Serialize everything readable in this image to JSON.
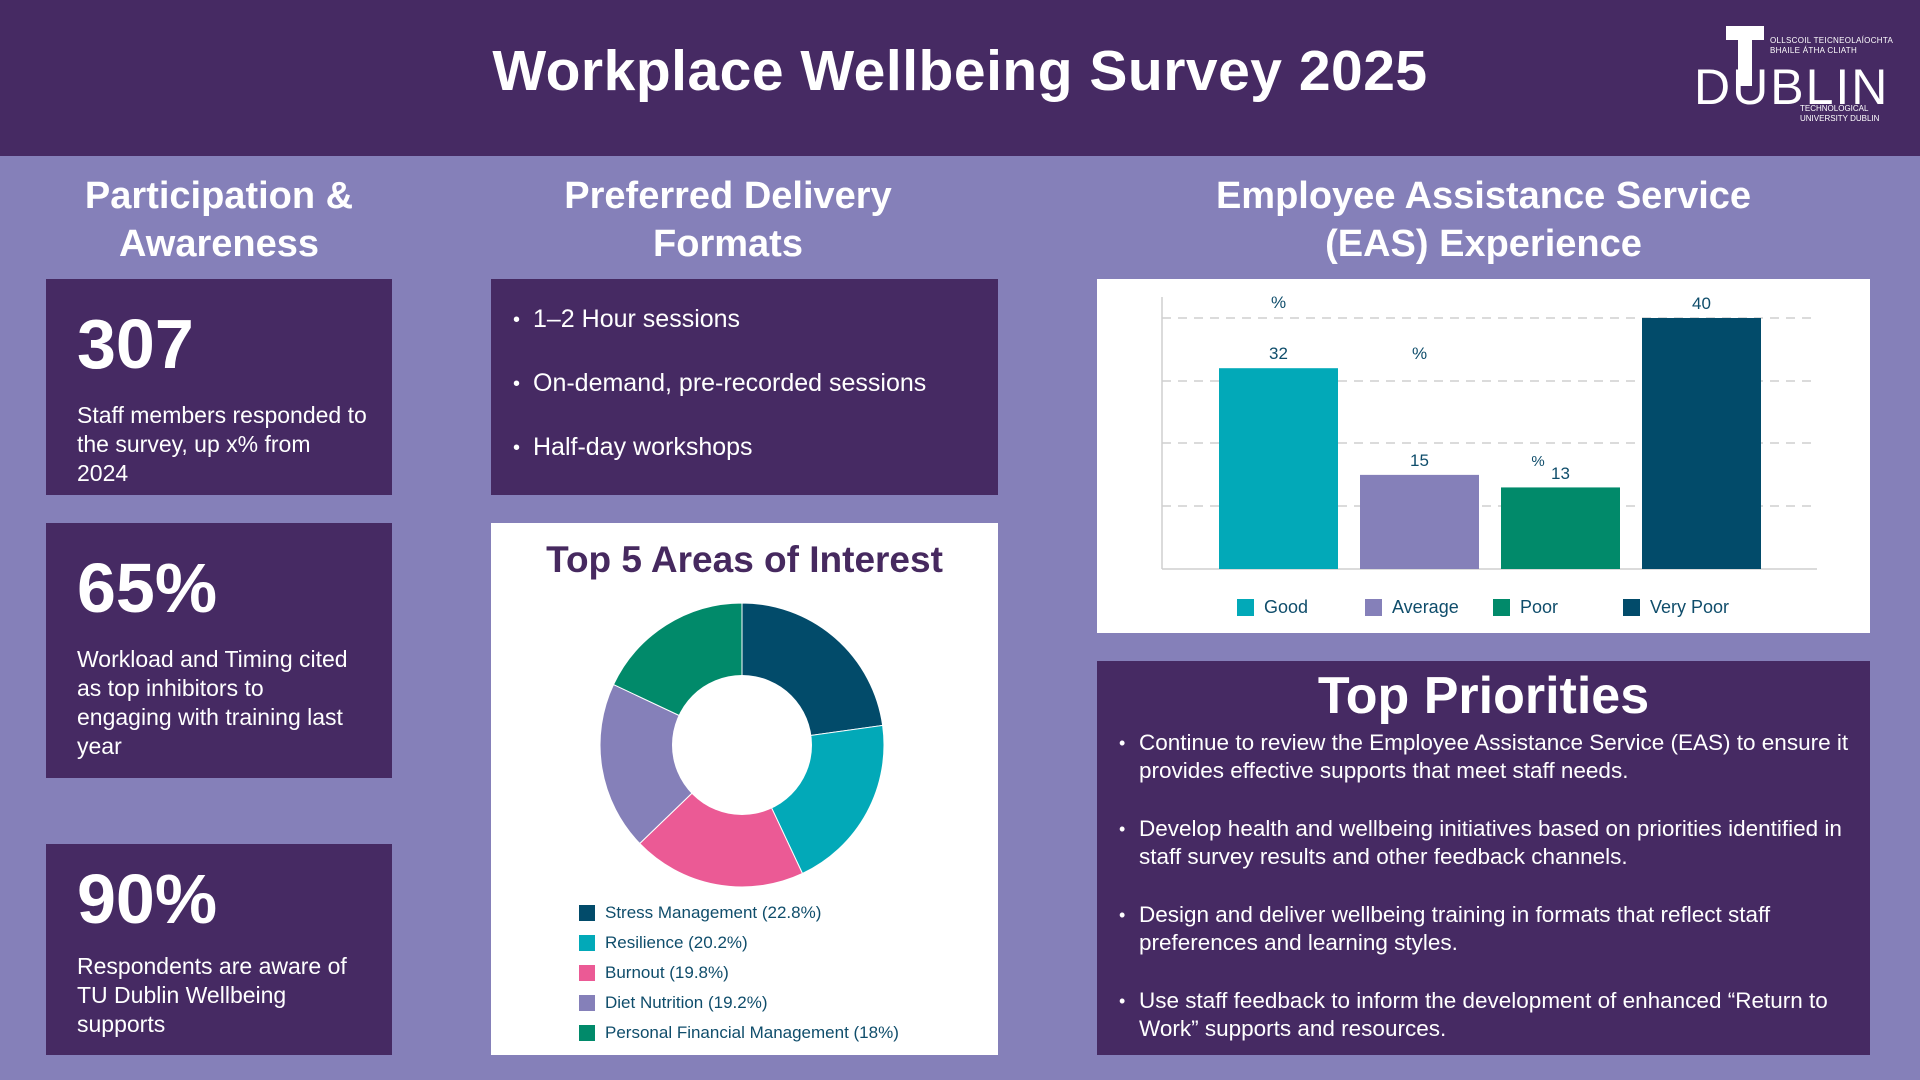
{
  "header": {
    "title": "Workplace Wellbeing Survey 2025",
    "logo": {
      "irish_line1": "OLLSCOIL TEICNEOLAÍOCHTA",
      "irish_line2": "BHAILE ÁTHA CLIATH",
      "wordmark": "DUBLIN",
      "english_line1": "TECHNOLOGICAL",
      "english_line2": "UNIVERSITY DUBLIN"
    }
  },
  "participation": {
    "title_line1": "Participation &",
    "title_line2": "Awareness",
    "stats": [
      {
        "value": "307",
        "description": "Staff members responded to the survey, up x% from 2024"
      },
      {
        "value": "65%",
        "description": "Workload and Timing cited as top inhibitors to engaging with training last year"
      },
      {
        "value": "90%",
        "description": "Respondents are aware of TU Dublin Wellbeing supports"
      }
    ]
  },
  "delivery": {
    "title_line1": "Preferred Delivery",
    "title_line2": "Formats",
    "items": [
      "1–2 Hour sessions",
      "On-demand, pre-recorded sessions",
      "Half-day workshops"
    ]
  },
  "interests": {
    "title": "Top 5 Areas of Interest",
    "legend": [
      "Stress Management (22.8%)",
      "Resilience (20.2%)",
      "Burnout (19.8%)",
      "Diet Nutrition (19.2%)",
      "Personal Financial Management (18%)"
    ]
  },
  "eas": {
    "title_line1": "Employee Assistance Service",
    "title_line2": "(EAS) Experience",
    "bar_labels": [
      "32",
      "15",
      "13",
      "40"
    ],
    "percent_marks": [
      "%",
      "%",
      "%"
    ],
    "legend": [
      "Good",
      "Average",
      "Poor",
      "Very Poor"
    ]
  },
  "priorities": {
    "title": "Top Priorities",
    "items": [
      "Continue to review the Employee Assistance Service (EAS) to ensure it provides effective supports that meet staff needs.",
      "Develop health and wellbeing initiatives based on priorities identified in staff survey results and other feedback channels.",
      "Design and deliver wellbeing training in formats that reflect staff preferences and learning styles.",
      "Use staff feedback to inform the development of enhanced “Return to Work” supports and resources."
    ]
  },
  "colors": {
    "header_bg": "#462a63",
    "page_bg": "#8580b9",
    "navy": "#024b6a",
    "teal": "#02a9b8",
    "pink": "#eb5a95",
    "lavender": "#8580b9",
    "green": "#018a6a"
  },
  "chart_data": [
    {
      "type": "bar",
      "title": "Employee Assistance Service (EAS) Experience",
      "categories": [
        "Good",
        "Average",
        "Poor",
        "Very Poor"
      ],
      "values": [
        32,
        15,
        13,
        40
      ],
      "unit": "%",
      "colors": [
        "#02a9b8",
        "#8580b9",
        "#018a6a",
        "#024b6a"
      ],
      "xlabel": "",
      "ylabel": "",
      "ylim": [
        0,
        40
      ],
      "grid": true,
      "legend_position": "bottom"
    },
    {
      "type": "pie",
      "title": "Top 5 Areas of Interest",
      "donut": true,
      "categories": [
        "Stress Management",
        "Resilience",
        "Burnout",
        "Diet Nutrition",
        "Personal Financial Management"
      ],
      "values": [
        22.8,
        20.2,
        19.8,
        19.2,
        18
      ],
      "unit": "%",
      "colors": [
        "#024b6a",
        "#02a9b8",
        "#eb5a95",
        "#8580b9",
        "#018a6a"
      ],
      "legend_position": "bottom"
    }
  ]
}
